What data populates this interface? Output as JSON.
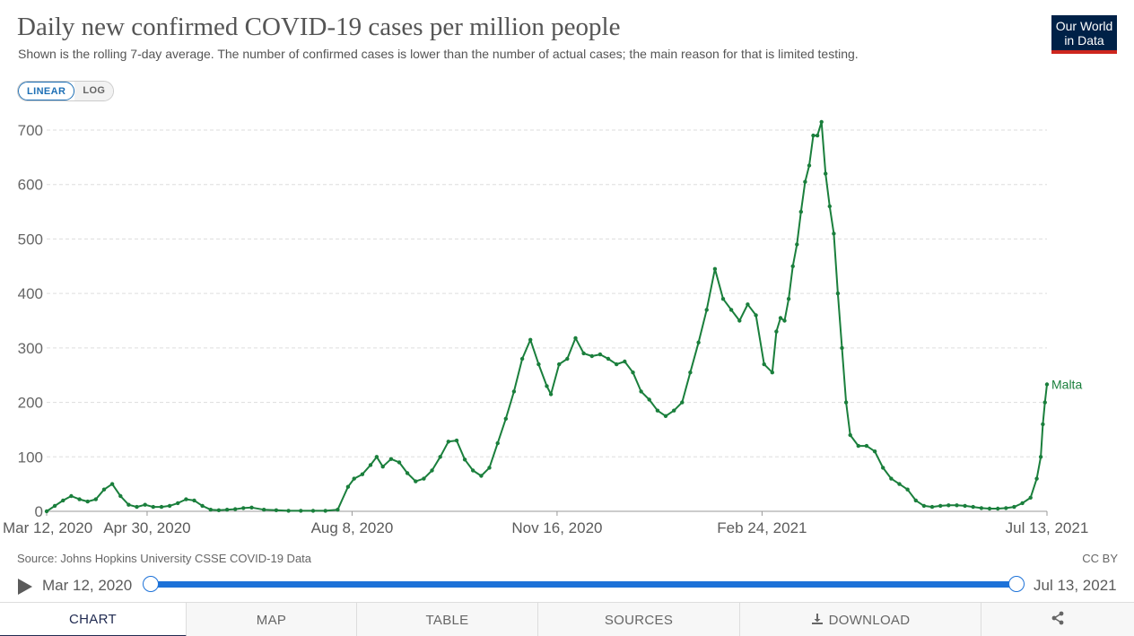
{
  "header": {
    "title": "Daily new confirmed COVID-19 cases per million people",
    "subtitle": "Shown is the rolling 7-day average. The number of confirmed cases is lower than the number of actual cases; the main reason for that is limited testing.",
    "logo_line1": "Our World",
    "logo_line2": "in Data"
  },
  "scale_toggle": {
    "linear": "LINEAR",
    "log": "LOG",
    "selected": "LINEAR"
  },
  "colors": {
    "series": "#1a7f3c",
    "accent": "#1d72d8",
    "logo_bg": "#002147",
    "logo_bar": "#ce261e"
  },
  "chart_data": {
    "type": "line",
    "title": "Daily new confirmed COVID-19 cases per million people",
    "xlabel": "",
    "ylabel": "",
    "ylim": [
      0,
      700
    ],
    "yticks": [
      0,
      100,
      200,
      300,
      400,
      500,
      600,
      700
    ],
    "x_range": [
      "Mar 12, 2020",
      "Jul 13, 2021"
    ],
    "x_tick_labels": [
      {
        "label": "Mar 12, 2020",
        "day": 0
      },
      {
        "label": "Apr 30, 2020",
        "day": 49
      },
      {
        "label": "Aug 8, 2020",
        "day": 149
      },
      {
        "label": "Nov 16, 2020",
        "day": 249
      },
      {
        "label": "Feb 24, 2021",
        "day": 349
      },
      {
        "label": "Jul 13, 2021",
        "day": 488
      }
    ],
    "grid": true,
    "series": [
      {
        "name": "Malta",
        "x_unit": "days since Mar 12, 2020",
        "x": [
          0,
          4,
          8,
          12,
          16,
          20,
          24,
          28,
          32,
          36,
          40,
          44,
          48,
          52,
          56,
          60,
          64,
          68,
          72,
          76,
          80,
          84,
          88,
          92,
          96,
          100,
          106,
          112,
          118,
          124,
          130,
          136,
          142,
          147,
          150,
          154,
          158,
          161,
          164,
          168,
          172,
          176,
          180,
          184,
          188,
          192,
          196,
          200,
          204,
          208,
          212,
          216,
          220,
          224,
          228,
          232,
          236,
          240,
          244,
          246,
          250,
          254,
          258,
          262,
          266,
          270,
          274,
          278,
          282,
          286,
          290,
          294,
          298,
          302,
          306,
          310,
          314,
          318,
          322,
          326,
          330,
          334,
          338,
          342,
          346,
          350,
          354,
          356,
          358,
          360,
          362,
          364,
          366,
          368,
          370,
          372,
          374,
          376,
          378,
          380,
          382,
          384,
          386,
          388,
          390,
          392,
          396,
          400,
          404,
          408,
          412,
          416,
          420,
          424,
          428,
          432,
          436,
          440,
          444,
          448,
          452,
          456,
          460,
          464,
          468,
          472,
          476,
          480,
          483,
          485,
          486,
          487,
          488
        ],
        "values": [
          0,
          10,
          20,
          28,
          22,
          18,
          22,
          40,
          50,
          28,
          12,
          8,
          12,
          8,
          8,
          10,
          15,
          22,
          20,
          10,
          3,
          2,
          3,
          4,
          6,
          7,
          3,
          2,
          1,
          1,
          1,
          1,
          3,
          45,
          60,
          68,
          85,
          100,
          82,
          96,
          90,
          70,
          55,
          60,
          75,
          100,
          128,
          130,
          95,
          75,
          65,
          80,
          125,
          170,
          220,
          280,
          315,
          270,
          230,
          215,
          270,
          280,
          318,
          290,
          285,
          288,
          280,
          270,
          275,
          255,
          220,
          205,
          185,
          175,
          185,
          200,
          255,
          310,
          370,
          445,
          390,
          370,
          350,
          380,
          360,
          270,
          255,
          330,
          355,
          350,
          390,
          450,
          490,
          550,
          605,
          635,
          690,
          690,
          715,
          620,
          560,
          510,
          400,
          300,
          200,
          140,
          120,
          120,
          110,
          80,
          60,
          50,
          40,
          20,
          10,
          8,
          10,
          11,
          11,
          10,
          8,
          6,
          5,
          5,
          6,
          8,
          15,
          25,
          60,
          100,
          160,
          200,
          233
        ]
      }
    ],
    "series_label": "Malta"
  },
  "footer": {
    "source": "Source: Johns Hopkins University CSSE COVID-19 Data",
    "license": "CC BY"
  },
  "timeline": {
    "start_label": "Mar 12, 2020",
    "end_label": "Jul 13, 2021"
  },
  "tabs": [
    {
      "label": "CHART",
      "icon": "",
      "active": true
    },
    {
      "label": "MAP",
      "icon": "",
      "active": false
    },
    {
      "label": "TABLE",
      "icon": "",
      "active": false
    },
    {
      "label": "SOURCES",
      "icon": "",
      "active": false
    },
    {
      "label": "DOWNLOAD",
      "icon": "download-icon",
      "active": false
    },
    {
      "label": "",
      "icon": "share-icon",
      "active": false
    }
  ]
}
